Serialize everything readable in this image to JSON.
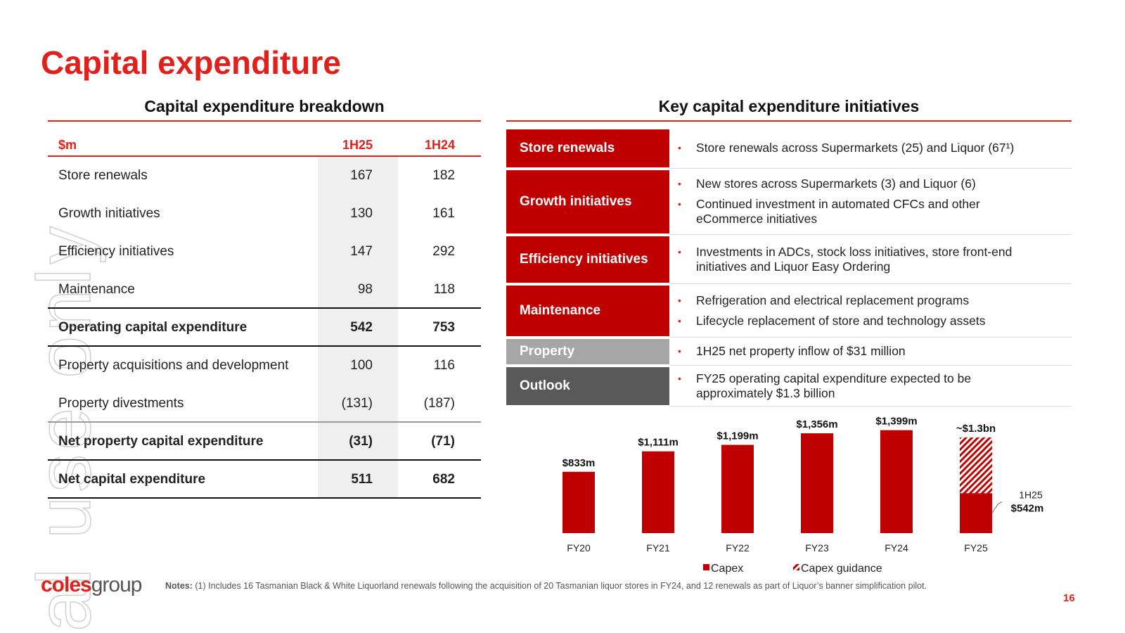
{
  "title": "Capital expenditure",
  "watermark": "al use only",
  "table": {
    "title": "Capital expenditure breakdown",
    "header": [
      "$m",
      "1H25",
      "1H24"
    ],
    "rows": [
      [
        "Store renewals",
        "167",
        "182"
      ],
      [
        "Growth initiatives",
        "130",
        "161"
      ],
      [
        "Efficiency initiatives",
        "147",
        "292"
      ],
      [
        "Maintenance",
        "98",
        "118"
      ],
      [
        "Operating capital expenditure",
        "542",
        "753"
      ],
      [
        "Property acquisitions and development",
        "100",
        "116"
      ],
      [
        "Property divestments",
        "(131)",
        "(187)"
      ],
      [
        "Net property capital expenditure",
        "(31)",
        "(71)"
      ],
      [
        "Net capital expenditure",
        "511",
        "682"
      ]
    ],
    "bold_rows": [
      4,
      7,
      8
    ]
  },
  "initiatives": {
    "title": "Key capital expenditure initiatives",
    "items": [
      {
        "label": "Store renewals",
        "color": "#c00000",
        "bullets": [
          "Store renewals across Supermarkets (25) and Liquor (67¹)"
        ]
      },
      {
        "label": "Growth initiatives",
        "color": "#c00000",
        "bullets": [
          "New stores across Supermarkets (3) and Liquor (6)",
          "Continued investment in automated CFCs and other eCommerce initiatives"
        ]
      },
      {
        "label": "Efficiency initiatives",
        "color": "#c00000",
        "bullets": [
          "Investments in ADCs, stock loss initiatives, store front-end initiatives and Liquor Easy Ordering"
        ]
      },
      {
        "label": "Maintenance",
        "color": "#c00000",
        "bullets": [
          "Refrigeration and electrical replacement programs",
          "Lifecycle replacement of store and technology assets"
        ]
      },
      {
        "label": "Property",
        "color": "#a6a6a6",
        "bullets": [
          "1H25 net property inflow of $31 million"
        ]
      },
      {
        "label": "Outlook",
        "color": "#595959",
        "bullets": [
          "FY25 operating capital expenditure expected to be approximately $1.3 billion"
        ]
      }
    ]
  },
  "chart_data": {
    "type": "bar",
    "categories": [
      "FY20",
      "FY21",
      "FY22",
      "FY23",
      "FY24",
      "FY25"
    ],
    "series": [
      {
        "name": "Capex",
        "color": "#c00000",
        "values": [
          833,
          1111,
          1199,
          1356,
          1399,
          542
        ],
        "value_labels": [
          "$833m",
          "$1,111m",
          "$1,199m",
          "$1,356m",
          "$1,399m",
          "$542m"
        ]
      },
      {
        "name": "Capex guidance",
        "color": "#c00000",
        "pattern": "hatch",
        "values": [
          null,
          null,
          null,
          null,
          null,
          1300
        ],
        "value_labels": [
          null,
          null,
          null,
          null,
          null,
          "~$1.3bn"
        ]
      }
    ],
    "annotation": "1H25",
    "ylim": [
      0,
      1500
    ]
  },
  "notes": {
    "label": "Notes:",
    "text": "(1) Includes 16 Tasmanian Black & White Liquorland renewals following the acquisition of 20 Tasmanian liquor stores in FY24, and 12 renewals as part of Liquor’s banner simplification pilot."
  },
  "logo": [
    "coles",
    "group"
  ],
  "page_number": "16"
}
